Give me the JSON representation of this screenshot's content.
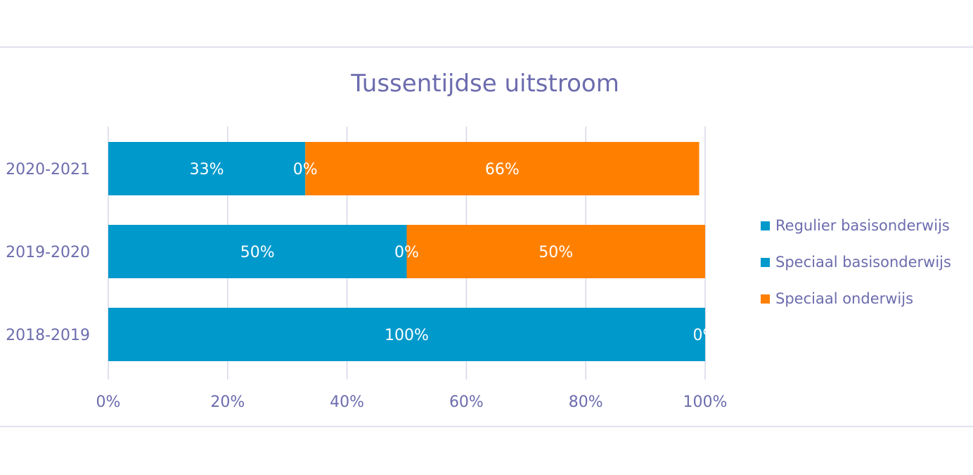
{
  "chart_data": {
    "type": "bar",
    "orientation": "horizontal",
    "stacked": "percent",
    "title": "Tussentijdse uitstroom",
    "categories": [
      "2020-2021",
      "2019-2020",
      "2018-2019"
    ],
    "series": [
      {
        "name": "Regulier basisonderwijs",
        "color": "#0099cc",
        "values": [
          33,
          50,
          100
        ],
        "labels": [
          "33%",
          "50%",
          "100%"
        ]
      },
      {
        "name": "Speciaal basisonderwijs",
        "color": "#0099cc",
        "values": [
          0,
          0,
          0
        ],
        "labels": [
          "0%",
          "0%",
          "0%"
        ]
      },
      {
        "name": "Speciaal onderwijs",
        "color": "#ff8000",
        "values": [
          66,
          50,
          0
        ],
        "labels": [
          "66%",
          "50%",
          ""
        ]
      }
    ],
    "xticks": [
      "0%",
      "20%",
      "40%",
      "60%",
      "80%",
      "100%"
    ],
    "xlim": [
      0,
      100
    ],
    "grid": true,
    "legend": "right"
  }
}
